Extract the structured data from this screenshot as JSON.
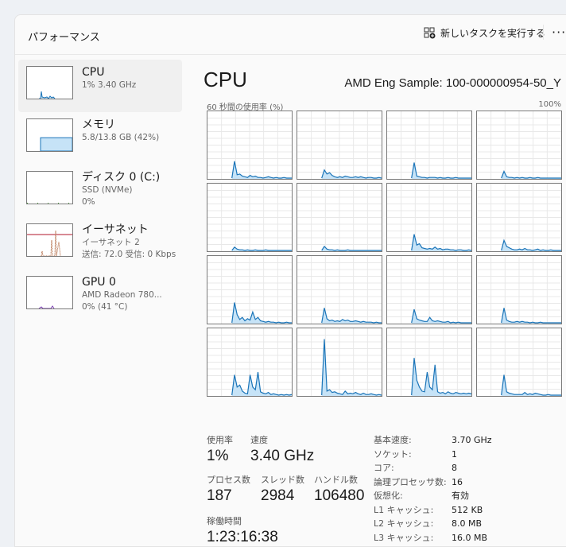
{
  "header": {
    "title": "パフォーマンス",
    "run_task": "新しいタスクを実行する",
    "more": "···"
  },
  "sidebar": {
    "items": [
      {
        "name": "CPU",
        "sub1": "1%  3.40 GHz",
        "type": "cpu",
        "color": "#1a74b8"
      },
      {
        "name": "メモリ",
        "sub1": "5.8/13.8 GB (42%)",
        "type": "mem",
        "color": "#1a74b8",
        "usage_percent": 42
      },
      {
        "name": "ディスク 0 (C:)",
        "sub1": "SSD (NVMe)",
        "sub2": "0%",
        "type": "disk",
        "color": "#4b9e3a"
      },
      {
        "name": "イーサネット",
        "sub1": "イーサネット 2",
        "sub2": "送信: 72.0 受信: 0 Kbps",
        "type": "net",
        "color": "#a7552a"
      },
      {
        "name": "GPU 0",
        "sub1": "AMD Radeon 780...",
        "sub2": "0%  (41 °C)",
        "type": "gpu",
        "color": "#7a3fb0"
      }
    ]
  },
  "main": {
    "title": "CPU",
    "model": "AMD Eng Sample: 100-000000954-50_Y",
    "axis_left": "60 秒間の使用率 (%)",
    "axis_right": "100%",
    "line_color": "#1a74b8",
    "fill_color": "#c6e3f7",
    "cores": [
      [
        0,
        25,
        5,
        6,
        3,
        2,
        1,
        4,
        2,
        3,
        1,
        1,
        0,
        1,
        2,
        1,
        0,
        1,
        0,
        0,
        1,
        0,
        0,
        0
      ],
      [
        0,
        12,
        6,
        8,
        4,
        2,
        1,
        2,
        1,
        3,
        2,
        1,
        1,
        2,
        1,
        2,
        1,
        0,
        1,
        1,
        0,
        0,
        1,
        0
      ],
      [
        0,
        23,
        3,
        2,
        1,
        1,
        0,
        1,
        1,
        1,
        0,
        1,
        0,
        0,
        1,
        0,
        0,
        1,
        0,
        0,
        0,
        0,
        0,
        0
      ],
      [
        0,
        10,
        2,
        1,
        1,
        0,
        1,
        0,
        1,
        0,
        0,
        1,
        0,
        0,
        1,
        0,
        0,
        0,
        0,
        0,
        0,
        0,
        0,
        0
      ],
      [
        0,
        5,
        2,
        1,
        1,
        0,
        1,
        0,
        0,
        1,
        0,
        0,
        0,
        1,
        0,
        0,
        0,
        0,
        0,
        0,
        0,
        0,
        0,
        0
      ],
      [
        0,
        6,
        2,
        1,
        1,
        0,
        1,
        0,
        0,
        0,
        1,
        0,
        0,
        0,
        0,
        0,
        0,
        0,
        0,
        0,
        0,
        0,
        0,
        0
      ],
      [
        0,
        24,
        8,
        10,
        4,
        3,
        2,
        3,
        2,
        5,
        2,
        3,
        1,
        2,
        2,
        1,
        1,
        0,
        1,
        1,
        0,
        0,
        1,
        0
      ],
      [
        0,
        15,
        6,
        4,
        2,
        1,
        1,
        2,
        1,
        3,
        1,
        1,
        0,
        1,
        2,
        0,
        1,
        0,
        0,
        1,
        0,
        0,
        0,
        0
      ],
      [
        0,
        30,
        12,
        5,
        8,
        3,
        6,
        4,
        16,
        5,
        8,
        3,
        2,
        1,
        2,
        1,
        1,
        0,
        1,
        0,
        0,
        1,
        0,
        0
      ],
      [
        0,
        22,
        6,
        3,
        4,
        2,
        3,
        2,
        5,
        3,
        4,
        2,
        2,
        3,
        2,
        1,
        2,
        1,
        1,
        1,
        0,
        1,
        0,
        0
      ],
      [
        0,
        20,
        6,
        4,
        3,
        2,
        2,
        8,
        3,
        2,
        3,
        2,
        1,
        1,
        2,
        0,
        1,
        0,
        1,
        0,
        0,
        0,
        0,
        0
      ],
      [
        0,
        22,
        4,
        2,
        1,
        1,
        2,
        1,
        2,
        1,
        1,
        0,
        1,
        0,
        0,
        1,
        0,
        0,
        0,
        0,
        0,
        0,
        0,
        0
      ],
      [
        0,
        30,
        12,
        15,
        6,
        3,
        2,
        30,
        12,
        8,
        34,
        5,
        3,
        2,
        4,
        1,
        2,
        1,
        0,
        1,
        0,
        1,
        0,
        1
      ],
      [
        0,
        83,
        6,
        8,
        4,
        5,
        3,
        2,
        1,
        6,
        2,
        3,
        2,
        4,
        2,
        1,
        3,
        1,
        1,
        2,
        1,
        0,
        1,
        0
      ],
      [
        0,
        55,
        22,
        12,
        6,
        5,
        34,
        12,
        8,
        45,
        5,
        3,
        4,
        2,
        5,
        3,
        2,
        4,
        3,
        2,
        3,
        2,
        3,
        2
      ],
      [
        0,
        30,
        5,
        3,
        2,
        1,
        1,
        1,
        1,
        4,
        1,
        2,
        1,
        3,
        2,
        1,
        0,
        0,
        1,
        0,
        0,
        0,
        0,
        0
      ]
    ],
    "stats": {
      "usage_label": "使用率",
      "usage": "1%",
      "speed_label": "速度",
      "speed": "3.40 GHz",
      "processes_label": "プロセス数",
      "processes": "187",
      "threads_label": "スレッド数",
      "threads": "2984",
      "handles_label": "ハンドル数",
      "handles": "106480",
      "uptime_label": "稼働時間",
      "uptime": "1:23:16:38"
    },
    "specs": [
      {
        "k": "基本速度:",
        "v": "3.70 GHz"
      },
      {
        "k": "ソケット:",
        "v": "1"
      },
      {
        "k": "コア:",
        "v": "8"
      },
      {
        "k": "論理プロセッサ数:",
        "v": "16"
      },
      {
        "k": "仮想化:",
        "v": "有効"
      },
      {
        "k": "L1 キャッシュ:",
        "v": "512 KB"
      },
      {
        "k": "L2 キャッシュ:",
        "v": "8.0 MB"
      },
      {
        "k": "L3 キャッシュ:",
        "v": "16.0 MB"
      }
    ]
  }
}
